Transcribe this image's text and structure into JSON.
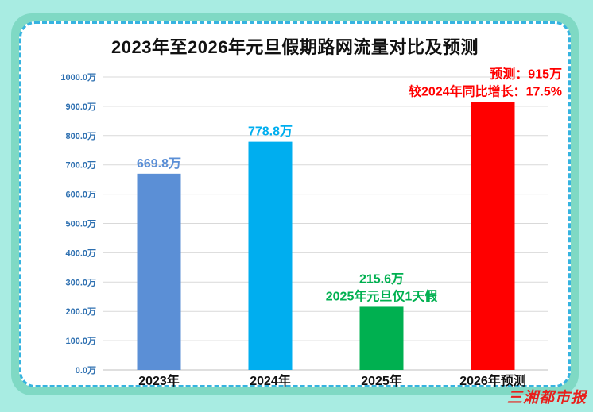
{
  "page": {
    "title": "2023年至2026年元旦假期路网流量对比及预测",
    "brand": "三湘都市报"
  },
  "chart_data": {
    "type": "bar",
    "title": "2023年至2026年元旦假期路网流量对比及预测",
    "xlabel": "",
    "ylabel": "",
    "ylim": [
      0,
      1000
    ],
    "yticks": [
      "0.0万",
      "100.0万",
      "200.0万",
      "300.0万",
      "400.0万",
      "500.0万",
      "600.0万",
      "700.0万",
      "800.0万",
      "900.0万",
      "1000.0万"
    ],
    "grid": true,
    "categories": [
      "2023年",
      "2024年",
      "2025年",
      "2026年预测"
    ],
    "values": [
      669.8,
      778.8,
      215.6,
      915
    ],
    "data_labels": [
      [
        "669.8万"
      ],
      [
        "778.8万"
      ],
      [
        "215.6万",
        "2025年元旦仅1天假"
      ],
      [
        "预测：915万",
        "较2024年同比增长：17.5%"
      ]
    ],
    "colors": {
      "bars": [
        "#5b8fd6",
        "#00aeef",
        "#00b050",
        "#ff0000"
      ],
      "labels": [
        "#5b8fd6",
        "#00aeef",
        "#00b050",
        "#ff0000"
      ],
      "xtick_highlight": "#ff0000"
    }
  }
}
